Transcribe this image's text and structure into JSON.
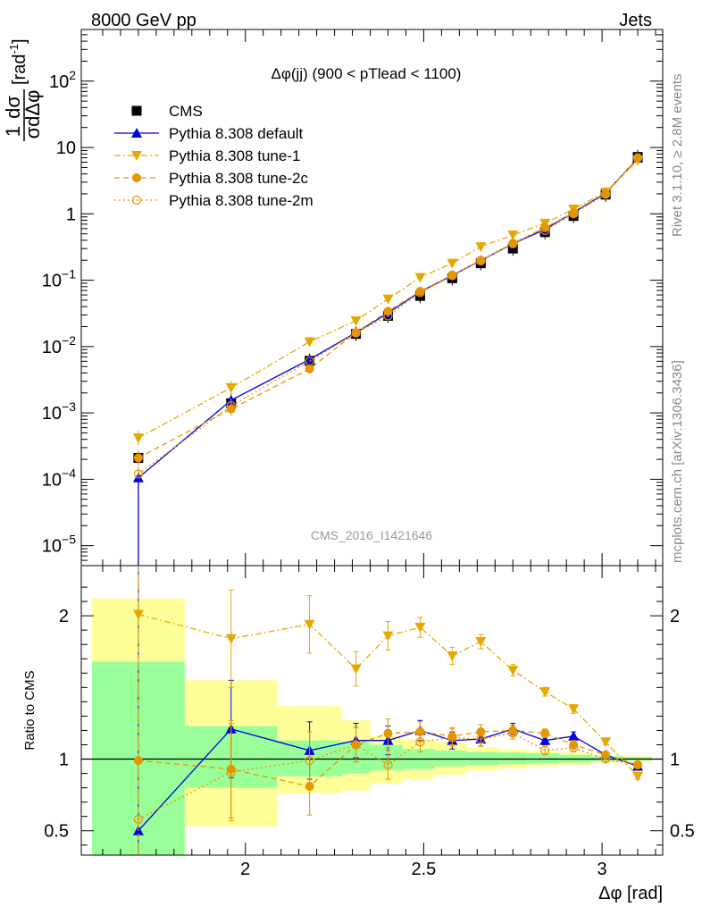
{
  "header": {
    "left": "8000 GeV pp",
    "right": "Jets",
    "side_rivet": "Rivet 3.1.10, ≥ 2.8M events",
    "side_mcplots": "mcplots.cern.ch [arXiv:1306.3436]"
  },
  "chart_data": [
    {
      "type": "line",
      "title": "Δφ(jj) (900 < pTlead <  1100)",
      "watermark": "CMS_2016_I1421646",
      "ylabel_frac_num": "1",
      "ylabel_frac_num2": "dσ",
      "ylabel_frac_den": "σdΔφ",
      "ylabel_unit": "[rad",
      "ylabel_unit_sup": "-1",
      "ylabel_unit_close": "]",
      "y_scale": "log",
      "ylim": [
        5e-06,
        600
      ],
      "xlim": [
        1.54,
        3.17
      ],
      "y_ticks": [
        {
          "value": 1e-05,
          "base": "10",
          "exp": "−5"
        },
        {
          "value": 0.0001,
          "base": "10",
          "exp": "−4"
        },
        {
          "value": 0.001,
          "base": "10",
          "exp": "−3"
        },
        {
          "value": 0.01,
          "base": "10",
          "exp": "−2"
        },
        {
          "value": 0.1,
          "base": "10",
          "exp": "−1"
        },
        {
          "value": 1,
          "base": "1",
          "exp": ""
        },
        {
          "value": 10,
          "base": "10",
          "exp": ""
        },
        {
          "value": 100,
          "base": "10",
          "exp": "2"
        }
      ],
      "legend_position": "top-left",
      "x": [
        1.7,
        1.96,
        2.18,
        2.31,
        2.4,
        2.49,
        2.58,
        2.66,
        2.75,
        2.84,
        2.92,
        3.01,
        3.1
      ],
      "series": [
        {
          "name": "CMS",
          "color": "#000000",
          "marker": "square",
          "line": "none",
          "values": [
            0.00021,
            0.0014,
            0.0061,
            0.0155,
            0.029,
            0.058,
            0.107,
            0.18,
            0.3,
            0.53,
            0.93,
            1.95,
            7.2
          ]
        },
        {
          "name": "Pythia 8.308 default",
          "color": "#0000dd",
          "marker": "triangle-up",
          "line": "solid",
          "values": [
            0.000105,
            0.00155,
            0.0064,
            0.0162,
            0.032,
            0.067,
            0.118,
            0.198,
            0.355,
            0.585,
            1.05,
            2.05,
            6.9
          ]
        },
        {
          "name": "Pythia 8.308 tune-1",
          "color": "#e6a800",
          "marker": "triangle-down",
          "line": "dashdot",
          "values": [
            0.00042,
            0.0024,
            0.0118,
            0.0245,
            0.052,
            0.11,
            0.18,
            0.32,
            0.48,
            0.72,
            1.18,
            2.12,
            6.4
          ]
        },
        {
          "name": "Pythia 8.308 tune-2c",
          "color": "#e69500",
          "marker": "circle",
          "line": "dashed",
          "values": [
            0.00021,
            0.00115,
            0.0046,
            0.0163,
            0.034,
            0.068,
            0.12,
            0.2,
            0.36,
            0.62,
            1.03,
            2.0,
            7.0
          ]
        },
        {
          "name": "Pythia 8.308 tune-2m",
          "color": "#e69500",
          "marker": "open-circle",
          "line": "dotted",
          "values": [
            0.00012,
            0.00128,
            0.006,
            0.016,
            0.029,
            0.065,
            0.117,
            0.195,
            0.355,
            0.56,
            1.0,
            1.97,
            7.0
          ]
        }
      ]
    },
    {
      "type": "line",
      "ylabel": "Ratio to CMS",
      "xlabel": "Δφ [rad]",
      "ylim": [
        0.33,
        2.35
      ],
      "xlim": [
        1.54,
        3.17
      ],
      "x_ticks": [
        2,
        2.5,
        3
      ],
      "x_tick_labels": [
        "2",
        "2.5",
        "3"
      ],
      "y_ticks": [
        0.5,
        1,
        2
      ],
      "y_tick_labels": [
        "0.5",
        "1",
        "2"
      ],
      "reference_line": 1,
      "bands": {
        "edges": [
          1.57,
          1.83,
          2.09,
          2.27,
          2.35,
          2.44,
          2.53,
          2.62,
          2.71,
          2.79,
          2.88,
          2.97,
          3.06,
          3.14
        ],
        "green_low": [
          0.33,
          0.8,
          0.88,
          0.9,
          0.92,
          0.93,
          0.95,
          0.96,
          0.965,
          0.97,
          0.975,
          0.985,
          0.99
        ],
        "green_high": [
          1.68,
          1.23,
          1.13,
          1.12,
          1.1,
          1.07,
          1.06,
          1.05,
          1.045,
          1.04,
          1.03,
          1.02,
          1.015
        ],
        "yellow_low": [
          0.33,
          0.53,
          0.76,
          0.78,
          0.83,
          0.86,
          0.89,
          0.92,
          0.935,
          0.95,
          0.96,
          0.975,
          0.985
        ],
        "yellow_high": [
          2.12,
          1.55,
          1.37,
          1.27,
          1.16,
          1.14,
          1.12,
          1.08,
          1.07,
          1.055,
          1.045,
          1.03,
          1.02
        ]
      },
      "x": [
        1.7,
        1.96,
        2.18,
        2.31,
        2.4,
        2.49,
        2.58,
        2.66,
        2.75,
        2.84,
        2.92,
        3.01,
        3.1
      ],
      "series": [
        {
          "name": "Pythia 8.308 default",
          "color": "#0000dd",
          "marker": "triangle-up",
          "line": "solid",
          "values": [
            0.5,
            1.21,
            1.06,
            1.13,
            1.13,
            1.2,
            1.13,
            1.14,
            1.21,
            1.13,
            1.16,
            1.03,
            0.95
          ]
        },
        {
          "name": "Pythia 8.308 tune-1",
          "color": "#e6a800",
          "marker": "triangle-down",
          "line": "dashdot",
          "values": [
            2.01,
            1.84,
            1.94,
            1.63,
            1.86,
            1.92,
            1.72,
            1.82,
            1.62,
            1.47,
            1.35,
            1.12,
            0.88
          ]
        },
        {
          "name": "Pythia 8.308 tune-2c",
          "color": "#e69500",
          "marker": "circle",
          "line": "dashed",
          "values": [
            0.99,
            0.93,
            0.81,
            1.1,
            1.18,
            1.19,
            1.16,
            1.19,
            1.2,
            1.18,
            1.1,
            1.03,
            0.96
          ]
        },
        {
          "name": "Pythia 8.308 tune-2m",
          "color": "#e69500",
          "marker": "open-circle",
          "line": "dotted",
          "values": [
            0.58,
            0.91,
            0.99,
            1.1,
            0.96,
            1.12,
            1.15,
            1.14,
            1.18,
            1.06,
            1.08,
            1.0,
            0.96
          ]
        }
      ]
    }
  ]
}
